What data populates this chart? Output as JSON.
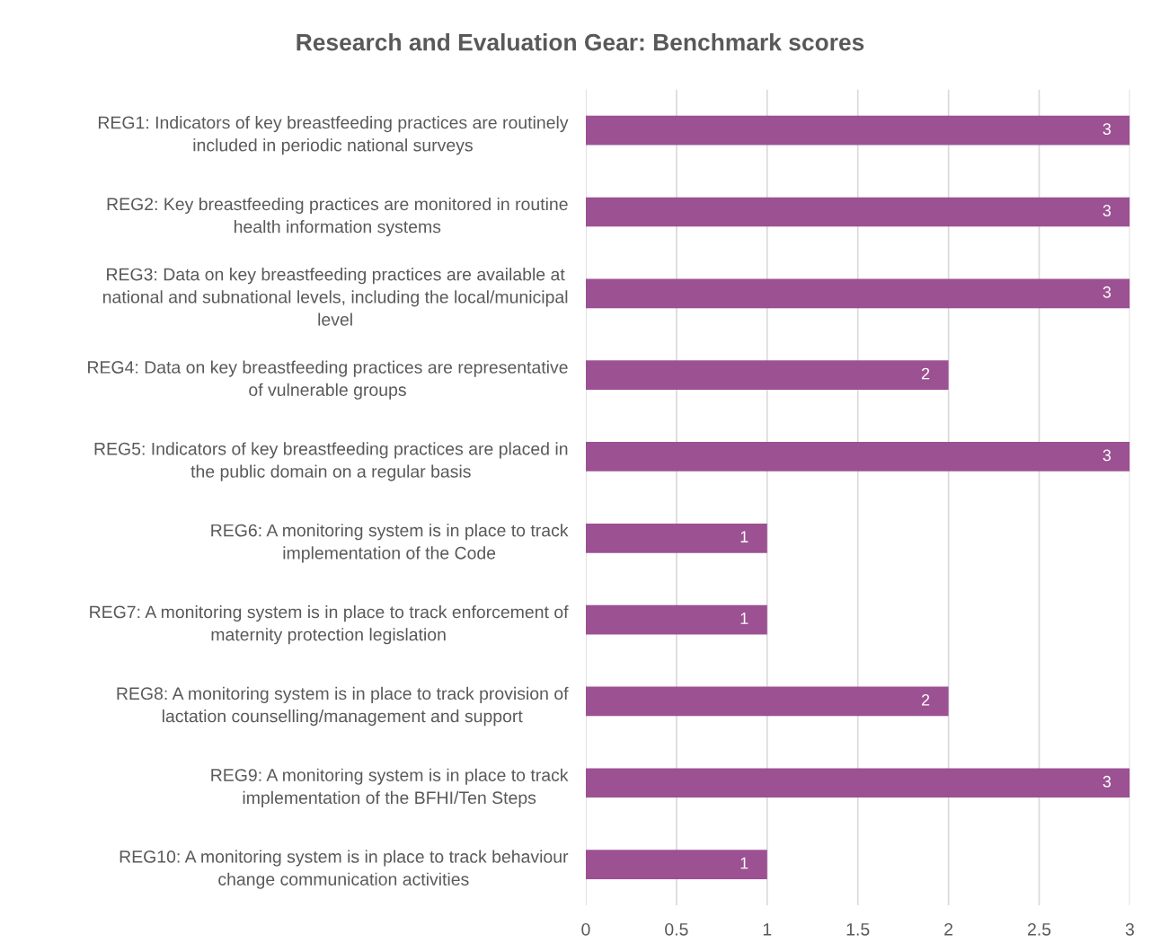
{
  "chart_data": {
    "type": "bar",
    "orientation": "horizontal",
    "title": "Research and Evaluation Gear: Benchmark scores",
    "categories": [
      "REG1: Indicators of key breastfeeding practices are routinely\nincluded in periodic national surveys",
      "REG2: Key breastfeeding practices are monitored in routine\nhealth information systems",
      "REG3: Data on key breastfeeding practices are available at\nnational and subnational levels, including the local/municipal\nlevel",
      "REG4: Data on key breastfeeding practices are representative\nof vulnerable groups",
      "REG5: Indicators of key breastfeeding practices are placed in\nthe public domain on a regular basis",
      "REG6: A monitoring system is in place to track\nimplementation of the Code",
      "REG7: A monitoring system is in place to track enforcement of\nmaternity protection legislation",
      "REG8: A monitoring system is in place to track provision of\nlactation counselling/management and support",
      "REG9: A monitoring system is in place to track\nimplementation of the BFHI/Ten Steps",
      "REG10: A monitoring system is in place to track behaviour\nchange communication activities"
    ],
    "values": [
      3,
      3,
      3,
      2,
      3,
      1,
      1,
      2,
      3,
      1
    ],
    "color": "#9c5193",
    "xlim": [
      0,
      3
    ],
    "xticks": [
      0,
      0.5,
      1,
      1.5,
      2,
      2.5,
      3
    ],
    "grid": "x",
    "data_labels": true
  }
}
